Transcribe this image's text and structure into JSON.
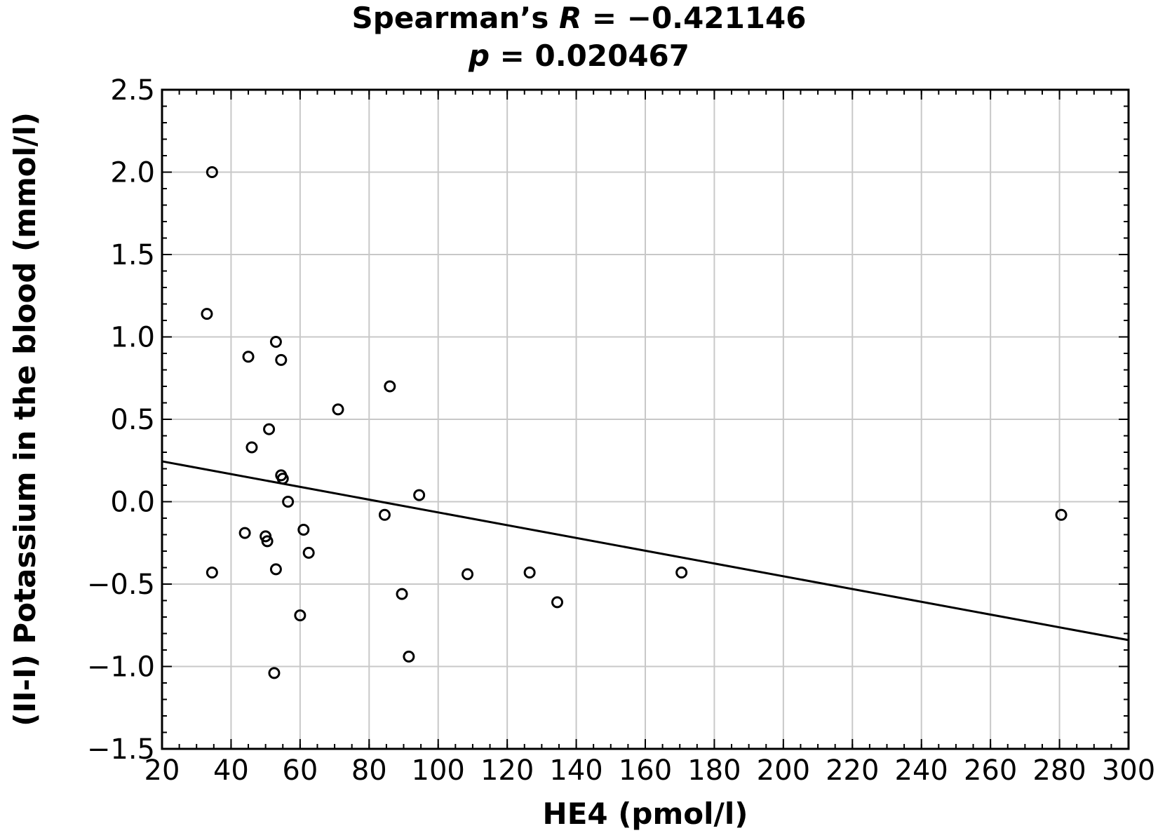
{
  "title": {
    "line1_prefix": "Spearman’s ",
    "line1_var": "R",
    "line1_suffix": " = −0.421146",
    "line2_var": "p",
    "line2_suffix": " = 0.020467"
  },
  "chart_data": {
    "type": "scatter",
    "xlabel": "HE4 (pmol/l)",
    "ylabel": "(II-I) Potassium in the blood (mmol/l)",
    "xlim": [
      20,
      300
    ],
    "ylim": [
      -1.5,
      2.5
    ],
    "xticks": [
      20,
      40,
      60,
      80,
      100,
      120,
      140,
      160,
      180,
      200,
      220,
      240,
      260,
      280,
      300
    ],
    "xtick_labels": [
      "20",
      "40",
      "60",
      "80",
      "100",
      "120",
      "140",
      "160",
      "180",
      "200",
      "220",
      "240",
      "260",
      "280",
      "300"
    ],
    "yticks": [
      2.5,
      2.0,
      1.5,
      1.0,
      0.5,
      0.0,
      -0.5,
      -1.0,
      -1.5
    ],
    "ytick_labels": [
      "2.5",
      "2.0",
      "1.5",
      "1.0",
      "0.5",
      "0.0",
      "−0.5",
      "−1.0",
      "−1.5"
    ],
    "grid": true,
    "marker": "open-circle",
    "color": "#000000",
    "gridColor": "#c8c8c8",
    "points": [
      {
        "x": 34.5,
        "y": 2.0
      },
      {
        "x": 33,
        "y": 1.14
      },
      {
        "x": 53,
        "y": 0.97
      },
      {
        "x": 45,
        "y": 0.88
      },
      {
        "x": 54.5,
        "y": 0.86
      },
      {
        "x": 86,
        "y": 0.7
      },
      {
        "x": 71,
        "y": 0.56
      },
      {
        "x": 51,
        "y": 0.44
      },
      {
        "x": 46,
        "y": 0.33
      },
      {
        "x": 54.5,
        "y": 0.16
      },
      {
        "x": 55,
        "y": 0.14
      },
      {
        "x": 94.5,
        "y": 0.04
      },
      {
        "x": 56.5,
        "y": 0.0
      },
      {
        "x": 84.5,
        "y": -0.08
      },
      {
        "x": 280.5,
        "y": -0.08
      },
      {
        "x": 61,
        "y": -0.17
      },
      {
        "x": 44,
        "y": -0.19
      },
      {
        "x": 50,
        "y": -0.21
      },
      {
        "x": 50.5,
        "y": -0.24
      },
      {
        "x": 62.5,
        "y": -0.31
      },
      {
        "x": 53,
        "y": -0.41
      },
      {
        "x": 34.5,
        "y": -0.43
      },
      {
        "x": 108.5,
        "y": -0.44
      },
      {
        "x": 126.5,
        "y": -0.43
      },
      {
        "x": 170.5,
        "y": -0.43
      },
      {
        "x": 89.5,
        "y": -0.56
      },
      {
        "x": 134.5,
        "y": -0.61
      },
      {
        "x": 60,
        "y": -0.69
      },
      {
        "x": 91.5,
        "y": -0.94
      },
      {
        "x": 52.5,
        "y": -1.04
      }
    ],
    "trendline": {
      "x": [
        20,
        300
      ],
      "y": [
        0.245,
        -0.84
      ]
    }
  }
}
